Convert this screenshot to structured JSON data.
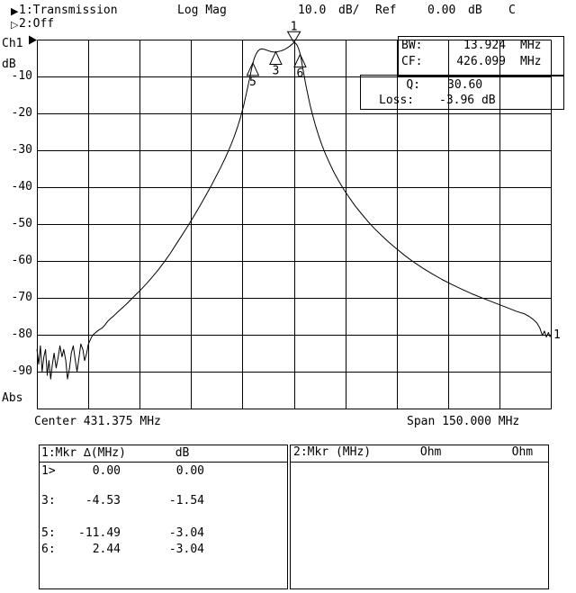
{
  "header": {
    "ch1_marker_icon": "▶",
    "ch1_measurement": "1:Transmission",
    "format_label": "Log Mag",
    "scale_value": "10.0",
    "scale_unit": "dB/",
    "ref_label": "Ref",
    "ref_value": "0.00",
    "ref_unit": "dB",
    "cal_flag": "C",
    "ch2_marker_icon": "▷",
    "ch2_measurement": "2:Off"
  },
  "y_axis": {
    "channel_label": "Ch1",
    "unit_label": "dB",
    "bottom_label": "Abs",
    "tick_labels": [
      "-10",
      "-20",
      "-30",
      "-40",
      "-50",
      "-60",
      "-70",
      "-80",
      "-90"
    ]
  },
  "x_axis": {
    "center_label": "Center 431.375 MHz",
    "span_label": "Span 150.000 MHz"
  },
  "readout": {
    "bw_label": "BW:",
    "bw_value": "13.924",
    "bw_unit": "MHz",
    "cf_label": "CF:",
    "cf_value": "426.099",
    "cf_unit": "MHz",
    "q_label": "Q:",
    "q_value": "30.60",
    "loss_label": "Loss:",
    "loss_value": "-3.96 dB"
  },
  "marker_table_1": {
    "header": "1:Mkr ∆(MHz)       dB",
    "rows": [
      {
        "id": "1>",
        "delta": "0.00",
        "db": "0.00"
      },
      {
        "id": "3:",
        "delta": "-4.53",
        "db": "-1.54"
      },
      {
        "id": "5:",
        "delta": "-11.49",
        "db": "-3.04"
      },
      {
        "id": "6:",
        "delta": "2.44",
        "db": "-3.04"
      }
    ]
  },
  "marker_table_2": {
    "header": "2:Mkr (MHz)       Ohm          Ohm"
  },
  "chart_data": {
    "type": "line",
    "title": "Ch1 1:Transmission Log Mag 10.0 dB/ Ref 0.00 dB",
    "xlabel": "Frequency (MHz), Center 431.375 MHz, Span 150.000 MHz",
    "ylabel": "dB",
    "xlim": [
      356.375,
      506.375
    ],
    "ylim": [
      -100,
      0
    ],
    "scale_per_div_db": 10.0,
    "ref_level_db": 0.0,
    "grid_divisions": [
      10,
      10
    ],
    "grid": true,
    "trace_number_label": "1",
    "measurements": {
      "bw_mhz": 13.924,
      "cf_mhz": 426.099,
      "q": 30.6,
      "loss_db": -3.96
    },
    "markers": [
      {
        "label": "1",
        "freq_mhz": 431.4,
        "level_db": -0.8,
        "shape": "triangle-down",
        "readout_delta_mhz": 0.0,
        "readout_db": 0.0
      },
      {
        "label": "3",
        "freq_mhz": 426.1,
        "level_db": -3.3,
        "shape": "triangle-up",
        "readout_delta_mhz": -4.53,
        "readout_db": -1.54
      },
      {
        "label": "5",
        "freq_mhz": 419.4,
        "level_db": -6.3,
        "shape": "triangle-up",
        "readout_delta_mhz": -11.49,
        "readout_db": -3.04
      },
      {
        "label": "6",
        "freq_mhz": 433.2,
        "level_db": -4.0,
        "shape": "triangle-up",
        "readout_delta_mhz": 2.44,
        "readout_db": -3.04
      }
    ],
    "series": [
      {
        "name": "1:Transmission",
        "points": [
          [
            356.4,
            -84
          ],
          [
            356.9,
            -88
          ],
          [
            357.4,
            -83
          ],
          [
            357.9,
            -90
          ],
          [
            358.4,
            -86
          ],
          [
            358.9,
            -84
          ],
          [
            359.4,
            -91
          ],
          [
            359.9,
            -87
          ],
          [
            360.4,
            -92
          ],
          [
            360.9,
            -88
          ],
          [
            361.4,
            -85
          ],
          [
            362.0,
            -89
          ],
          [
            362.6,
            -86
          ],
          [
            363.1,
            -83
          ],
          [
            363.7,
            -86
          ],
          [
            364.2,
            -84
          ],
          [
            364.8,
            -87
          ],
          [
            365.3,
            -92
          ],
          [
            365.9,
            -89
          ],
          [
            366.4,
            -85
          ],
          [
            367.0,
            -83
          ],
          [
            367.6,
            -87
          ],
          [
            368.1,
            -90
          ],
          [
            368.7,
            -86
          ],
          [
            369.2,
            -82.5
          ],
          [
            369.8,
            -84
          ],
          [
            370.3,
            -87
          ],
          [
            370.9,
            -85
          ],
          [
            371.4,
            -82.5
          ],
          [
            371.9,
            -81.5
          ],
          [
            372.4,
            -80.5
          ],
          [
            373.0,
            -79.8
          ],
          [
            373.8,
            -79.2
          ],
          [
            374.6,
            -78.6
          ],
          [
            375.4,
            -78.2
          ],
          [
            376.2,
            -77.4
          ],
          [
            377.0,
            -76.4
          ],
          [
            377.9,
            -75.6
          ],
          [
            378.9,
            -74.8
          ],
          [
            380.0,
            -73.8
          ],
          [
            381.2,
            -72.8
          ],
          [
            382.5,
            -71.7
          ],
          [
            383.9,
            -70.4
          ],
          [
            385.4,
            -69.0
          ],
          [
            387.0,
            -67.5
          ],
          [
            388.6,
            -65.9
          ],
          [
            390.2,
            -64.2
          ],
          [
            391.9,
            -62.3
          ],
          [
            393.6,
            -60.2
          ],
          [
            395.4,
            -57.8
          ],
          [
            397.2,
            -55.2
          ],
          [
            399.0,
            -52.6
          ],
          [
            400.8,
            -50.0
          ],
          [
            402.5,
            -47.4
          ],
          [
            404.1,
            -44.8
          ],
          [
            405.7,
            -42.2
          ],
          [
            407.2,
            -39.7
          ],
          [
            408.6,
            -37.2
          ],
          [
            410.0,
            -34.7
          ],
          [
            411.3,
            -32.2
          ],
          [
            412.6,
            -29.5
          ],
          [
            413.8,
            -26.7
          ],
          [
            414.9,
            -23.8
          ],
          [
            415.9,
            -20.8
          ],
          [
            416.8,
            -17.6
          ],
          [
            417.6,
            -14.2
          ],
          [
            418.4,
            -10.8
          ],
          [
            419.1,
            -7.6
          ],
          [
            419.7,
            -5.4
          ],
          [
            420.3,
            -4.0
          ],
          [
            420.9,
            -3.1
          ],
          [
            421.5,
            -2.6
          ],
          [
            422.2,
            -2.5
          ],
          [
            423.0,
            -2.7
          ],
          [
            423.9,
            -3.0
          ],
          [
            424.8,
            -3.3
          ],
          [
            425.7,
            -3.4
          ],
          [
            426.6,
            -3.3
          ],
          [
            427.5,
            -3.1
          ],
          [
            428.4,
            -2.8
          ],
          [
            429.2,
            -2.4
          ],
          [
            430.0,
            -1.9
          ],
          [
            430.7,
            -1.4
          ],
          [
            431.2,
            -1.0
          ],
          [
            431.5,
            -0.8
          ],
          [
            431.9,
            -1.0
          ],
          [
            432.3,
            -1.5
          ],
          [
            432.7,
            -2.3
          ],
          [
            433.1,
            -3.5
          ],
          [
            433.5,
            -5.2
          ],
          [
            433.9,
            -7.3
          ],
          [
            434.4,
            -9.8
          ],
          [
            434.9,
            -12.4
          ],
          [
            435.5,
            -15.1
          ],
          [
            436.1,
            -17.7
          ],
          [
            436.8,
            -20.3
          ],
          [
            437.6,
            -23.0
          ],
          [
            438.5,
            -25.7
          ],
          [
            439.5,
            -28.4
          ],
          [
            440.6,
            -31.0
          ],
          [
            441.8,
            -33.5
          ],
          [
            443.1,
            -36.0
          ],
          [
            444.5,
            -38.4
          ],
          [
            446.0,
            -40.7
          ],
          [
            447.6,
            -42.9
          ],
          [
            449.3,
            -45.1
          ],
          [
            451.1,
            -47.2
          ],
          [
            453.0,
            -49.3
          ],
          [
            455.0,
            -51.3
          ],
          [
            457.1,
            -53.2
          ],
          [
            459.3,
            -55.1
          ],
          [
            461.6,
            -56.9
          ],
          [
            464.0,
            -58.7
          ],
          [
            466.5,
            -60.4
          ],
          [
            469.1,
            -62.0
          ],
          [
            471.8,
            -63.5
          ],
          [
            474.6,
            -65.0
          ],
          [
            477.5,
            -66.4
          ],
          [
            480.5,
            -67.7
          ],
          [
            483.6,
            -69.0
          ],
          [
            486.8,
            -70.2
          ],
          [
            490.1,
            -71.4
          ],
          [
            493.5,
            -72.6
          ],
          [
            496.5,
            -73.7
          ],
          [
            498.6,
            -74.3
          ],
          [
            500.0,
            -75.0
          ],
          [
            501.2,
            -75.8
          ],
          [
            502.3,
            -76.8
          ],
          [
            503.2,
            -78.2
          ],
          [
            503.9,
            -80.2
          ],
          [
            504.5,
            -79.0
          ],
          [
            505.1,
            -80.6
          ],
          [
            505.7,
            -79.4
          ],
          [
            506.1,
            -80.5
          ],
          [
            506.4,
            -80.0
          ]
        ]
      }
    ]
  }
}
